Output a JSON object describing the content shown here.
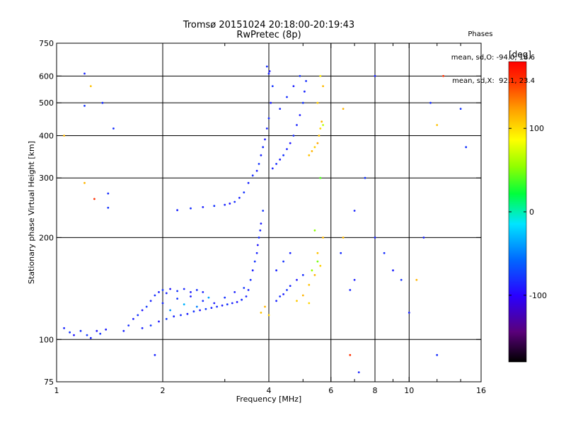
{
  "chart_data": {
    "type": "scatter",
    "title": "Tromsø 20151024 20:18:00-20:19:43",
    "subtitle": "RwPretec (8p)",
    "xlabel": "Frequency [MHz]",
    "ylabel": "Stationary phase Virtual Height [km]",
    "x_scale": "log",
    "y_scale": "log",
    "xlim": [
      1,
      16
    ],
    "ylim": [
      75,
      750
    ],
    "x_ticks": [
      1,
      2,
      4,
      6,
      8,
      10,
      16
    ],
    "x_tick_labels": [
      "1",
      "2",
      "4",
      "6",
      "8",
      "10",
      "16"
    ],
    "x_minor_ticks": [
      3,
      5,
      7,
      9,
      12,
      14
    ],
    "y_ticks": [
      75,
      100,
      200,
      300,
      400,
      500,
      600,
      750
    ],
    "y_tick_labels": [
      "75",
      "100",
      "200",
      "300",
      "400",
      "500",
      "600",
      "750"
    ],
    "x_gridlines": [
      2,
      4,
      6,
      8,
      10
    ],
    "y_gridlines": [
      100,
      200,
      300,
      400,
      500,
      600
    ],
    "grid": true,
    "stats_header": "Phases",
    "stats_lines": [
      "mean, sd,O: -94.0, 18.6",
      "mean, sd,X:  92.1, 23.4"
    ],
    "colorbar": {
      "label": "[deg]",
      "tick_labels": [
        "100",
        "0",
        "-100"
      ],
      "tick_values": [
        100,
        0,
        -100
      ],
      "range": [
        -180,
        180
      ],
      "colors": [
        "#000000",
        "#5a007a",
        "#2a00ff",
        "#0068ff",
        "#00e5ff",
        "#00ff3c",
        "#90ff00",
        "#ffff00",
        "#ffa000",
        "#ff3800",
        "#ff0000"
      ]
    },
    "series": [
      {
        "values": [
          [
            1.05,
            108,
            -95
          ],
          [
            1.09,
            105,
            -90
          ],
          [
            1.12,
            103,
            -100
          ],
          [
            1.17,
            106,
            -92
          ],
          [
            1.22,
            103,
            -88
          ],
          [
            1.25,
            101,
            -95
          ],
          [
            1.3,
            106,
            -100
          ],
          [
            1.33,
            104,
            -90
          ],
          [
            1.38,
            107,
            -98
          ],
          [
            1.55,
            106,
            -95
          ],
          [
            1.6,
            110,
            -92
          ],
          [
            1.65,
            115,
            -97
          ],
          [
            1.7,
            118,
            -90
          ],
          [
            1.75,
            122,
            -100
          ],
          [
            1.8,
            125,
            -88
          ],
          [
            1.85,
            130,
            -95
          ],
          [
            1.9,
            135,
            -92
          ],
          [
            1.95,
            138,
            -97
          ],
          [
            2.0,
            140,
            -90
          ],
          [
            2.05,
            137,
            -95
          ],
          [
            2.1,
            141,
            -100
          ],
          [
            2.2,
            139,
            -90
          ],
          [
            2.3,
            141,
            -95
          ],
          [
            2.4,
            138,
            -98
          ],
          [
            2.5,
            140,
            -92
          ],
          [
            2.6,
            138,
            -96
          ],
          [
            1.75,
            108,
            -95
          ],
          [
            1.85,
            110,
            -90
          ],
          [
            1.95,
            113,
            -100
          ],
          [
            2.05,
            115,
            -88
          ],
          [
            2.15,
            117,
            -95
          ],
          [
            2.25,
            118,
            -92
          ],
          [
            2.35,
            119,
            -97
          ],
          [
            2.45,
            121,
            -90
          ],
          [
            2.55,
            122,
            -100
          ],
          [
            2.65,
            123,
            -88
          ],
          [
            2.75,
            124,
            -95
          ],
          [
            2.85,
            125,
            -92
          ],
          [
            2.95,
            126,
            -97
          ],
          [
            3.05,
            127,
            -90
          ],
          [
            3.15,
            128,
            -95
          ],
          [
            3.25,
            129,
            -100
          ],
          [
            3.35,
            131,
            -92
          ],
          [
            3.45,
            134,
            -95
          ],
          [
            2.0,
            128,
            -93
          ],
          [
            2.2,
            132,
            -90
          ],
          [
            2.4,
            134,
            -97
          ],
          [
            2.6,
            130,
            -92
          ],
          [
            2.8,
            128,
            -98
          ],
          [
            3.0,
            133,
            -91
          ],
          [
            3.2,
            138,
            -96
          ],
          [
            3.4,
            142,
            -90
          ],
          [
            2.1,
            122,
            -60
          ],
          [
            2.3,
            127,
            -50
          ],
          [
            2.5,
            125,
            -65
          ],
          [
            2.7,
            133,
            -55
          ],
          [
            3.5,
            140,
            -95
          ],
          [
            3.55,
            150,
            -92
          ],
          [
            3.6,
            160,
            -97
          ],
          [
            3.65,
            170,
            -90
          ],
          [
            3.7,
            180,
            -95
          ],
          [
            3.72,
            190,
            -100
          ],
          [
            3.75,
            200,
            -92
          ],
          [
            3.78,
            210,
            -95
          ],
          [
            3.8,
            220,
            -98
          ],
          [
            3.85,
            240,
            -90
          ],
          [
            2.2,
            241,
            -95
          ],
          [
            2.4,
            244,
            -92
          ],
          [
            2.6,
            246,
            -97
          ],
          [
            2.8,
            248,
            -90
          ],
          [
            3.0,
            250,
            -95
          ],
          [
            3.1,
            252,
            -100
          ],
          [
            3.2,
            255,
            -92
          ],
          [
            3.3,
            262,
            -95
          ],
          [
            3.4,
            272,
            -90
          ],
          [
            3.5,
            290,
            -95
          ],
          [
            3.6,
            305,
            -92
          ],
          [
            3.7,
            315,
            -97
          ],
          [
            3.75,
            330,
            -90
          ],
          [
            3.8,
            350,
            -95
          ],
          [
            3.85,
            370,
            -92
          ],
          [
            3.9,
            390,
            -98
          ],
          [
            3.95,
            420,
            -95
          ],
          [
            4.0,
            450,
            -92
          ],
          [
            4.05,
            500,
            -97
          ],
          [
            4.1,
            560,
            -90
          ],
          [
            4.0,
            610,
            -95
          ],
          [
            3.95,
            640,
            -92
          ],
          [
            4.02,
            620,
            -100
          ],
          [
            4.1,
            320,
            -95
          ],
          [
            4.2,
            330,
            -92
          ],
          [
            4.3,
            340,
            -97
          ],
          [
            4.4,
            350,
            -90
          ],
          [
            4.5,
            365,
            -95
          ],
          [
            4.6,
            380,
            -100
          ],
          [
            4.7,
            400,
            -92
          ],
          [
            4.8,
            430,
            -95
          ],
          [
            4.9,
            460,
            -98
          ],
          [
            5.0,
            500,
            -90
          ],
          [
            5.05,
            540,
            -95
          ],
          [
            5.1,
            580,
            -92
          ],
          [
            4.3,
            480,
            -95
          ],
          [
            4.5,
            520,
            -92
          ],
          [
            4.7,
            560,
            -97
          ],
          [
            4.9,
            600,
            -90
          ],
          [
            4.2,
            130,
            -95
          ],
          [
            4.3,
            134,
            -92
          ],
          [
            4.4,
            136,
            -97
          ],
          [
            4.5,
            140,
            -90
          ],
          [
            4.6,
            144,
            -95
          ],
          [
            4.8,
            150,
            -100
          ],
          [
            5.0,
            155,
            -92
          ],
          [
            4.2,
            160,
            -95
          ],
          [
            4.4,
            170,
            -90
          ],
          [
            4.6,
            180,
            -95
          ],
          [
            5.2,
            350,
            95
          ],
          [
            5.3,
            360,
            100
          ],
          [
            5.4,
            370,
            90
          ],
          [
            5.5,
            380,
            105
          ],
          [
            5.55,
            400,
            95
          ],
          [
            5.6,
            420,
            88
          ],
          [
            5.65,
            440,
            100
          ],
          [
            5.5,
            500,
            92
          ],
          [
            5.7,
            560,
            98
          ],
          [
            5.6,
            600,
            80
          ],
          [
            5.2,
            145,
            95
          ],
          [
            5.4,
            155,
            100
          ],
          [
            5.6,
            165,
            90
          ],
          [
            5.5,
            180,
            95
          ],
          [
            5.7,
            200,
            98
          ],
          [
            4.8,
            130,
            92
          ],
          [
            5.0,
            135,
            100
          ],
          [
            5.2,
            128,
            88
          ],
          [
            3.8,
            120,
            95
          ],
          [
            3.9,
            125,
            100
          ],
          [
            4.0,
            118,
            90
          ],
          [
            5.3,
            160,
            40
          ],
          [
            5.5,
            170,
            30
          ],
          [
            5.7,
            430,
            50
          ],
          [
            5.6,
            300,
            20
          ],
          [
            5.4,
            210,
            35
          ],
          [
            1.2,
            610,
            -95
          ],
          [
            1.2,
            490,
            -90
          ],
          [
            1.35,
            500,
            -92
          ],
          [
            1.2,
            290,
            100
          ],
          [
            1.4,
            245,
            -90
          ],
          [
            1.4,
            270,
            -92
          ],
          [
            1.05,
            400,
            100
          ],
          [
            1.25,
            560,
            95
          ],
          [
            1.28,
            260,
            150
          ],
          [
            1.9,
            90,
            -95
          ],
          [
            1.45,
            420,
            -92
          ],
          [
            6.8,
            140,
            -95
          ],
          [
            6.4,
            180,
            -92
          ],
          [
            7.0,
            150,
            -97
          ],
          [
            6.5,
            200,
            98
          ],
          [
            7.0,
            240,
            -95
          ],
          [
            7.5,
            300,
            -90
          ],
          [
            8.0,
            200,
            -95
          ],
          [
            8.5,
            180,
            -92
          ],
          [
            9.0,
            160,
            -97
          ],
          [
            9.5,
            150,
            -90
          ],
          [
            10.5,
            150,
            100
          ],
          [
            11.0,
            200,
            -95
          ],
          [
            12.0,
            90,
            -92
          ],
          [
            12.0,
            430,
            95
          ],
          [
            14.0,
            480,
            -90
          ],
          [
            8.0,
            600,
            -95
          ],
          [
            6.5,
            480,
            100
          ],
          [
            7.2,
            80,
            -95
          ],
          [
            6.8,
            90,
            150
          ],
          [
            11.5,
            500,
            -92
          ],
          [
            14.5,
            370,
            -90
          ],
          [
            12.5,
            600,
            150
          ],
          [
            10.0,
            120,
            -95
          ]
        ]
      }
    ]
  }
}
